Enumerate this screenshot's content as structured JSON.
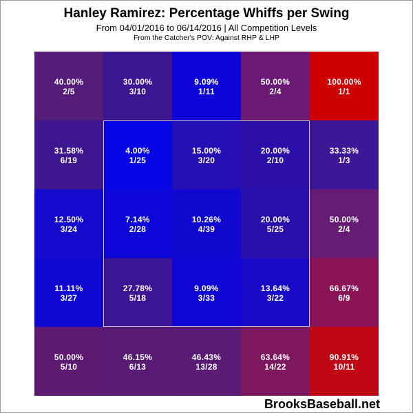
{
  "header": {
    "title": "Hanley Ramirez: Percentage Whiffs per Swing",
    "subtitle": "From 04/01/2016 to 06/14/2016 | All Competition Levels",
    "subtitle2": "From the Catcher's POV:   Against RHP & LHP"
  },
  "watermark": "BrooksBaseball.net",
  "chart_data": {
    "type": "heatmap",
    "title": "Hanley Ramirez: Percentage Whiffs per Swing",
    "rows": 5,
    "cols": 5,
    "cells": [
      [
        {
          "pct": "40.00%",
          "frac": "2/5",
          "value": 40.0,
          "color": "#551c7a"
        },
        {
          "pct": "30.00%",
          "frac": "3/10",
          "value": 30.0,
          "color": "#3c1590"
        },
        {
          "pct": "9.09%",
          "frac": "1/11",
          "value": 9.09,
          "color": "#0f04d6"
        },
        {
          "pct": "50.00%",
          "frac": "2/4",
          "value": 50.0,
          "color": "#6a1a73"
        },
        {
          "pct": "100.00%",
          "frac": "1/1",
          "value": 100.0,
          "color": "#cc0000"
        }
      ],
      [
        {
          "pct": "31.58%",
          "frac": "6/19",
          "value": 31.58,
          "color": "#3e168f"
        },
        {
          "pct": "4.00%",
          "frac": "1/25",
          "value": 4.0,
          "color": "#0505e6"
        },
        {
          "pct": "15.00%",
          "frac": "3/20",
          "value": 15.0,
          "color": "#250fb4"
        },
        {
          "pct": "20.00%",
          "frac": "2/10",
          "value": 20.0,
          "color": "#2b0fa8"
        },
        {
          "pct": "33.33%",
          "frac": "1/3",
          "value": 33.33,
          "color": "#3d1795"
        }
      ],
      [
        {
          "pct": "12.50%",
          "frac": "3/24",
          "value": 12.5,
          "color": "#1509cd"
        },
        {
          "pct": "7.14%",
          "frac": "2/28",
          "value": 7.14,
          "color": "#0c06d8"
        },
        {
          "pct": "10.26%",
          "frac": "4/39",
          "value": 10.26,
          "color": "#1108cf"
        },
        {
          "pct": "20.00%",
          "frac": "5/25",
          "value": 20.0,
          "color": "#2a0fab"
        },
        {
          "pct": "50.00%",
          "frac": "2/4",
          "value": 50.0,
          "color": "#661b74"
        }
      ],
      [
        {
          "pct": "11.11%",
          "frac": "3/27",
          "value": 11.11,
          "color": "#1008d0"
        },
        {
          "pct": "27.78%",
          "frac": "5/18",
          "value": 27.78,
          "color": "#3b1593"
        },
        {
          "pct": "9.09%",
          "frac": "3/33",
          "value": 9.09,
          "color": "#0f06d6"
        },
        {
          "pct": "13.64%",
          "frac": "3/22",
          "value": 13.64,
          "color": "#1809c8"
        },
        {
          "pct": "66.67%",
          "frac": "6/9",
          "value": 66.67,
          "color": "#8a1456"
        }
      ],
      [
        {
          "pct": "50.00%",
          "frac": "5/10",
          "value": 50.0,
          "color": "#5e1a70"
        },
        {
          "pct": "46.15%",
          "frac": "6/13",
          "value": 46.15,
          "color": "#581b74"
        },
        {
          "pct": "46.43%",
          "frac": "13/28",
          "value": 46.43,
          "color": "#591b73"
        },
        {
          "pct": "63.64%",
          "frac": "14/22",
          "value": 63.64,
          "color": "#7e1660"
        },
        {
          "pct": "90.91%",
          "frac": "10/11",
          "value": 90.91,
          "color": "#be0614"
        }
      ]
    ]
  }
}
